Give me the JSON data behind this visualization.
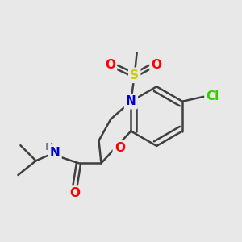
{
  "bg_color": "#e8e8e8",
  "atom_colors": {
    "C": "#404040",
    "N": "#0000cc",
    "O": "#ff0000",
    "S": "#cccc00",
    "Cl": "#33cc00",
    "H": "#708090"
  },
  "bond_color": "#404040",
  "bond_width": 1.8,
  "font_size_atoms": 11,
  "font_size_small": 9
}
